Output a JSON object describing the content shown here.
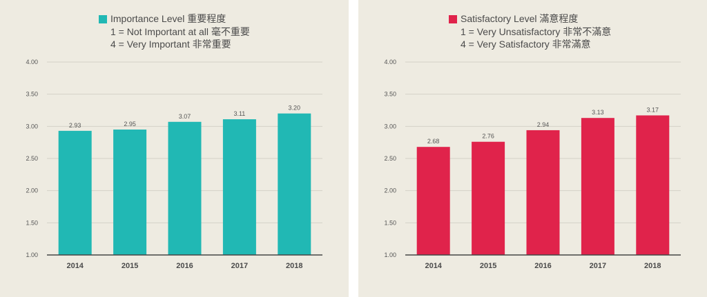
{
  "chart_data": [
    {
      "type": "bar",
      "categories": [
        "2014",
        "2015",
        "2016",
        "2017",
        "2018"
      ],
      "values": [
        2.93,
        2.95,
        3.07,
        3.11,
        3.2
      ],
      "data_labels": [
        "2.93",
        "2.95",
        "3.07",
        "3.11",
        "3.20"
      ],
      "legend": {
        "series_name": "Importance Level 重要程度",
        "line1": "1 = Not Important at all 毫不重要",
        "line2": "4 = Very Important 非常重要"
      },
      "ylim": [
        1.0,
        4.0
      ],
      "yticks": [
        "1.00",
        "1.50",
        "2.00",
        "2.50",
        "3.00",
        "3.50",
        "4.00"
      ],
      "ytick_values": [
        1.0,
        1.5,
        2.0,
        2.5,
        3.0,
        3.5,
        4.0
      ],
      "grid": true,
      "color": "#21b8b4"
    },
    {
      "type": "bar",
      "categories": [
        "2014",
        "2015",
        "2016",
        "2017",
        "2018"
      ],
      "values": [
        2.68,
        2.76,
        2.94,
        3.13,
        3.17
      ],
      "data_labels": [
        "2.68",
        "2.76",
        "2.94",
        "3.13",
        "3.17"
      ],
      "legend": {
        "series_name": "Satisfactory Level 滿意程度",
        "line1": "1 = Very Unsatisfactory 非常不滿意",
        "line2": "4 = Very Satisfactory 非常滿意"
      },
      "ylim": [
        1.0,
        4.0
      ],
      "yticks": [
        "1.00",
        "1.50",
        "2.00",
        "2.50",
        "3.00",
        "3.50",
        "4.00"
      ],
      "ytick_values": [
        1.0,
        1.5,
        2.0,
        2.5,
        3.0,
        3.5,
        4.0
      ],
      "grid": true,
      "color": "#e0234b"
    }
  ]
}
